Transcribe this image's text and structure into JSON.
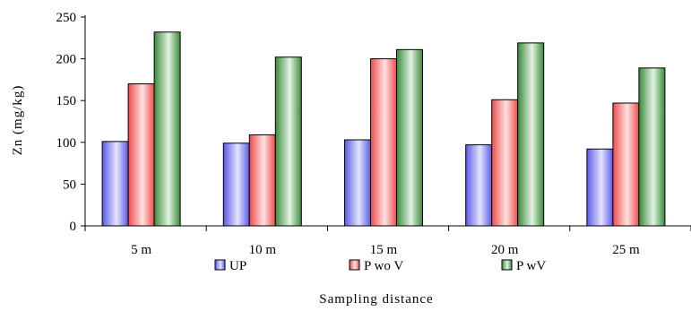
{
  "chart_data": {
    "type": "bar",
    "title": "",
    "xlabel": "Sampling distance",
    "ylabel": "Zn (mg/kg)",
    "ylim": [
      0,
      250
    ],
    "yticks": [
      0,
      50,
      100,
      150,
      200,
      250
    ],
    "categories": [
      "5 m",
      "10 m",
      "15 m",
      "20 m",
      "25 m"
    ],
    "series": [
      {
        "name": "UP",
        "values": [
          101,
          99,
          103,
          97,
          92
        ],
        "color": "#5a5ae6",
        "highlight": "#e4e4ff"
      },
      {
        "name": "P wo V",
        "values": [
          170,
          109,
          200,
          151,
          147
        ],
        "color": "#ee4b4b",
        "highlight": "#ffe2e2"
      },
      {
        "name": "P wV",
        "values": [
          232,
          202,
          211,
          219,
          189
        ],
        "color": "#3a8a3a",
        "highlight": "#e2f3e2"
      }
    ],
    "legend_position": "bottom",
    "grid": false
  }
}
